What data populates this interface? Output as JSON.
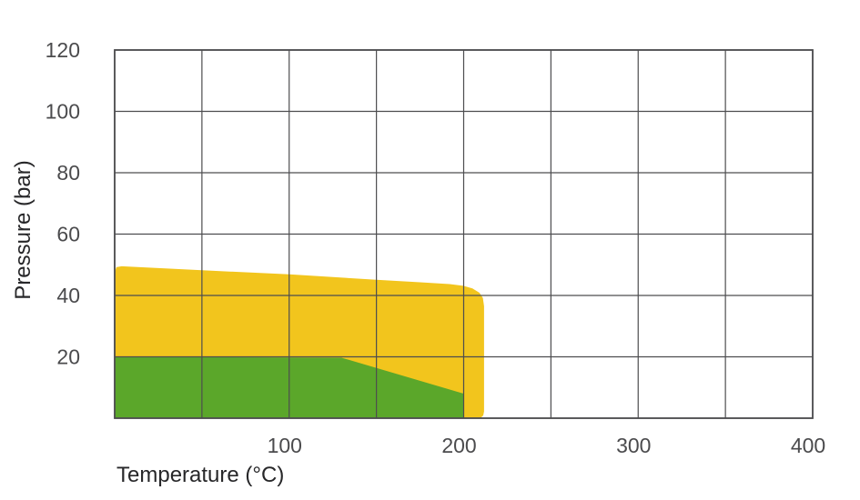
{
  "chart_data": {
    "type": "area",
    "title": "",
    "xlabel": "Temperature (°C)",
    "ylabel": "Pressure (bar)",
    "xlim": [
      0,
      400
    ],
    "ylim": [
      0,
      120
    ],
    "xticks": [
      100,
      200,
      300,
      400
    ],
    "yticks": [
      20,
      40,
      60,
      80,
      100,
      120
    ],
    "x_grid_step": 50,
    "y_grid_step": 20,
    "grid": true,
    "legend_position": "none",
    "colors": {
      "grid": "#4d4d4f",
      "tick_text": "#4b4b4d",
      "axis_text": "#272729",
      "background": "#ffffff",
      "yellow_region": "#F2C51D",
      "green_region": "#5BA72A"
    },
    "series": [
      {
        "name": "upper-pressure-region",
        "color": "#F2C51D",
        "style": "filled-area",
        "points": [
          [
            0,
            47.5
          ],
          [
            1,
            49.2
          ],
          [
            4,
            49.5
          ],
          [
            50,
            48.2
          ],
          [
            100,
            46.9
          ],
          [
            150,
            45.1
          ],
          [
            175,
            44.3
          ],
          [
            192,
            43.7
          ],
          [
            200,
            43.1
          ],
          [
            205,
            42.3
          ],
          [
            209,
            40.9
          ],
          [
            211,
            39.2
          ],
          [
            211.7,
            36.5
          ],
          [
            211.7,
            2.2
          ],
          [
            211.2,
            0.9
          ],
          [
            210,
            0.2
          ],
          [
            208.5,
            0
          ],
          [
            0,
            0
          ]
        ]
      },
      {
        "name": "lower-pressure-region",
        "color": "#5BA72A",
        "style": "filled-area",
        "points": [
          [
            0,
            20
          ],
          [
            130,
            19.7
          ],
          [
            200,
            8
          ],
          [
            200,
            0
          ],
          [
            0,
            0
          ]
        ]
      }
    ]
  }
}
